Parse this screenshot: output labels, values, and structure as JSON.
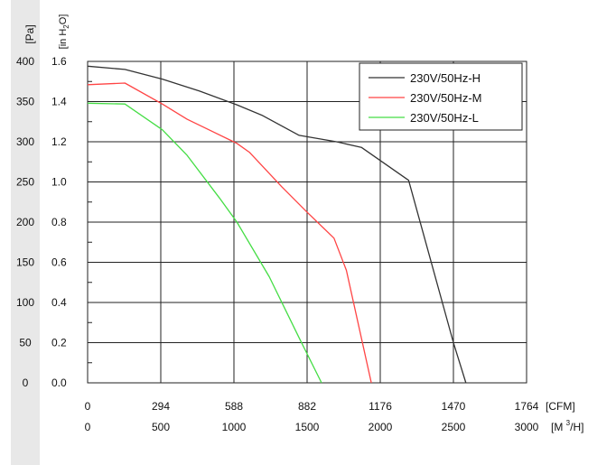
{
  "chart_data": {
    "type": "line",
    "title": "",
    "y_axes": [
      {
        "unit": "[Pa]",
        "ticks": [
          "0",
          "50",
          "100",
          "150",
          "200",
          "250",
          "300",
          "350",
          "400"
        ],
        "range": [
          0,
          400
        ]
      },
      {
        "unit_parts": [
          "[in H",
          "2",
          "O]"
        ],
        "ticks": [
          "0.0",
          "0.2",
          "0.4",
          "0.6",
          "0.8",
          "1.0",
          "1.2",
          "1.4",
          "1.6"
        ],
        "range": [
          0,
          1.6
        ]
      }
    ],
    "x_axes": [
      {
        "unit": "[CFM]",
        "ticks": [
          "0",
          "294",
          "588",
          "882",
          "1176",
          "1470",
          "1764"
        ],
        "range": [
          0,
          1764
        ]
      },
      {
        "unit_parts": [
          "[M ",
          "3",
          "/H]"
        ],
        "ticks": [
          "0",
          "500",
          "1000",
          "1500",
          "2000",
          "2500",
          "3000"
        ],
        "range": [
          0,
          3000
        ]
      }
    ],
    "grid": true,
    "legend_position": "top-right",
    "series": [
      {
        "name": "230V/50Hz-H",
        "color": "#333333",
        "x": [
          0,
          150,
          300,
          450,
          600,
          700,
          850,
          1000,
          1100,
          1290,
          1470,
          1520
        ],
        "y": [
          394,
          390,
          378,
          363,
          346,
          333,
          308,
          300,
          293,
          252,
          50,
          0
        ]
      },
      {
        "name": "230V/50Hz-M",
        "color": "#ff4444",
        "x": [
          0,
          150,
          300,
          400,
          500,
          600,
          650,
          780,
          880,
          990,
          1040,
          1140
        ],
        "y": [
          371,
          373,
          347,
          328,
          313,
          298,
          287,
          244,
          213,
          180,
          140,
          0
        ]
      },
      {
        "name": "230V/50Hz-L",
        "color": "#44dd44",
        "x": [
          0,
          150,
          300,
          400,
          530,
          600,
          730,
          850,
          940
        ],
        "y": [
          348,
          347,
          315,
          283,
          230,
          200,
          132,
          56,
          0
        ]
      }
    ]
  }
}
